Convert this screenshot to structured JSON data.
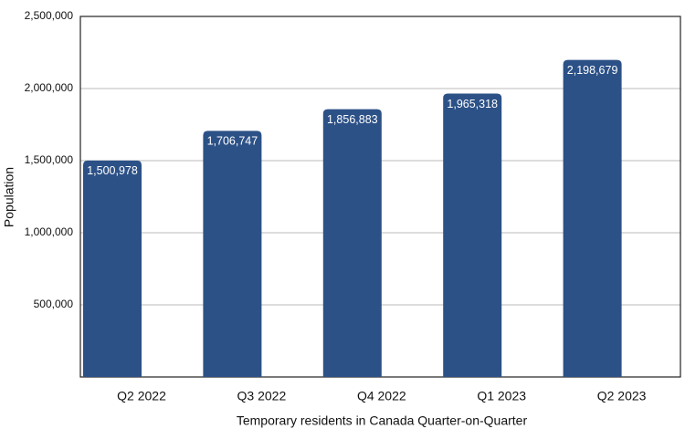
{
  "chart_data": {
    "type": "bar",
    "x_label": "Temporary residents in Canada Quarter-on-Quarter",
    "y_label": "Population",
    "categories": [
      "Q2 2022",
      "Q3 2022",
      "Q4 2022",
      "Q1 2023",
      "Q2 2023"
    ],
    "values": [
      1500978,
      1706747,
      1856883,
      1965318,
      2198679
    ],
    "value_labels": [
      "1,500,978",
      "1,706,747",
      "1,856,883",
      "1,965,318",
      "2,198,679"
    ],
    "color": "#2c5187",
    "ylim": [
      0,
      2500000
    ],
    "yticks": [
      {
        "value": 500000,
        "label": "500,000"
      },
      {
        "value": 1000000,
        "label": "1,000,000"
      },
      {
        "value": 1500000,
        "label": "1,500,000"
      },
      {
        "value": 2000000,
        "label": "2,000,000"
      },
      {
        "value": 2500000,
        "label": "2,500,000"
      }
    ],
    "grid": true
  }
}
